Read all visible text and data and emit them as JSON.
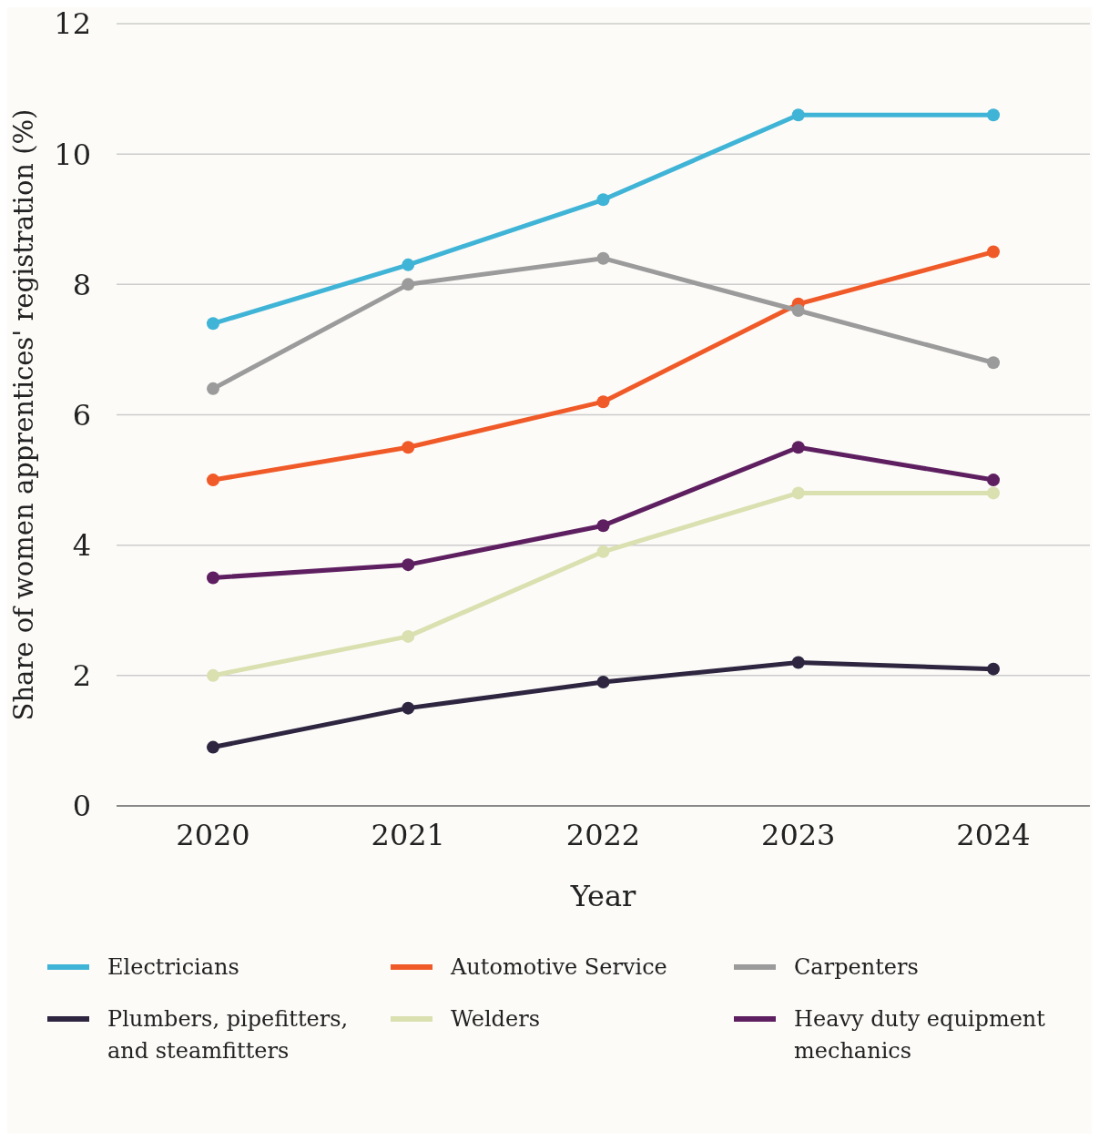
{
  "chart_data": {
    "type": "line",
    "xlabel": "Year",
    "ylabel": "Share of women apprentices' registration (%)",
    "categories": [
      "2020",
      "2021",
      "2022",
      "2023",
      "2024"
    ],
    "series": [
      {
        "name": "Electricians",
        "color": "#40b4d6",
        "values": [
          7.4,
          8.3,
          9.3,
          10.6,
          10.6
        ]
      },
      {
        "name": "Automotive Service",
        "color": "#f05a28",
        "values": [
          5.0,
          5.5,
          6.2,
          7.7,
          8.5
        ]
      },
      {
        "name": "Carpenters",
        "color": "#9b9b9b",
        "values": [
          6.4,
          8.0,
          8.4,
          7.6,
          6.8
        ]
      },
      {
        "name": "Plumbers, pipefitters, and steamfitters",
        "color": "#2e2640",
        "values": [
          0.9,
          1.5,
          1.9,
          2.2,
          2.1
        ]
      },
      {
        "name": "Welders",
        "color": "#dbe0b0",
        "values": [
          2.0,
          2.6,
          3.9,
          4.8,
          4.8
        ]
      },
      {
        "name": "Heavy duty equipment mechanics",
        "color": "#5e1f60",
        "values": [
          3.5,
          3.7,
          4.3,
          5.5,
          5.0
        ]
      }
    ],
    "ylim": [
      0,
      12
    ],
    "yticks": [
      0,
      2,
      4,
      6,
      8,
      10,
      12
    ],
    "grid": "y",
    "legend": "bottom",
    "marker": "circle",
    "line_style": "solid"
  }
}
